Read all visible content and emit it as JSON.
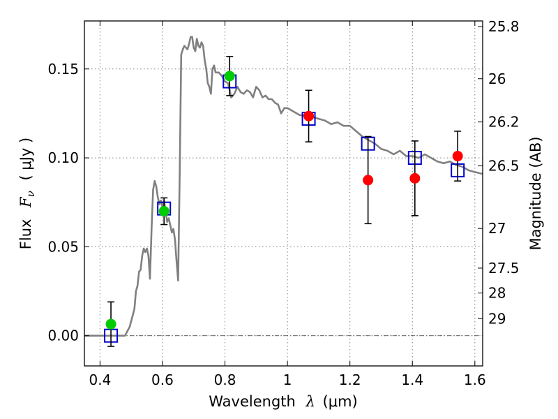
{
  "chart_data": {
    "type": "scatter",
    "xlabel_text": "Wavelength",
    "xlabel_symbol": "λ",
    "xlabel_unit": "(μm)",
    "ylabel_text": "Flux",
    "ylabel_symbol": "F",
    "ylabel_sub": "ν",
    "ylabel_unit": "( μJy )",
    "y2label": "Magnitude (AB)",
    "xlim": [
      0.35,
      1.625
    ],
    "ylim": [
      -0.017,
      0.177
    ],
    "grid": true,
    "x_ticks": [
      {
        "value": 0.4,
        "label": "0.4"
      },
      {
        "value": 0.6,
        "label": "0.6"
      },
      {
        "value": 0.8,
        "label": "0.8"
      },
      {
        "value": 1.0,
        "label": "1"
      },
      {
        "value": 1.2,
        "label": "1.2"
      },
      {
        "value": 1.4,
        "label": "1.4"
      },
      {
        "value": 1.6,
        "label": "1.6"
      }
    ],
    "y_ticks": [
      {
        "value": 0.0,
        "label": "0.00"
      },
      {
        "value": 0.05,
        "label": "0.05"
      },
      {
        "value": 0.1,
        "label": "0.10"
      },
      {
        "value": 0.15,
        "label": "0.15"
      }
    ],
    "magnitude_ticks": [
      {
        "flux": 0.1738,
        "label": "25.8"
      },
      {
        "flux": 0.1445,
        "label": "26"
      },
      {
        "flux": 0.1202,
        "label": "26.2"
      },
      {
        "flux": 0.0955,
        "label": "26.5"
      },
      {
        "flux": 0.0603,
        "label": "27"
      },
      {
        "flux": 0.038,
        "label": "27.5"
      },
      {
        "flux": 0.024,
        "label": "28"
      },
      {
        "flux": 0.0096,
        "label": "29"
      }
    ],
    "series": [
      {
        "kind": "line",
        "color": "#808080",
        "x": [
          0.35,
          0.48,
          0.495,
          0.51,
          0.515,
          0.52,
          0.525,
          0.53,
          0.535,
          0.54,
          0.545,
          0.55,
          0.555,
          0.56,
          0.565,
          0.57,
          0.575,
          0.58,
          0.585,
          0.59,
          0.595,
          0.6,
          0.605,
          0.61,
          0.615,
          0.62,
          0.625,
          0.63,
          0.635,
          0.64,
          0.645,
          0.65,
          0.655,
          0.66,
          0.665,
          0.67,
          0.675,
          0.68,
          0.685,
          0.69,
          0.695,
          0.7,
          0.705,
          0.71,
          0.715,
          0.72,
          0.725,
          0.73,
          0.735,
          0.74,
          0.745,
          0.75,
          0.755,
          0.76,
          0.765,
          0.77,
          0.78,
          0.79,
          0.8,
          0.81,
          0.82,
          0.83,
          0.84,
          0.85,
          0.86,
          0.87,
          0.88,
          0.89,
          0.9,
          0.91,
          0.92,
          0.93,
          0.94,
          0.95,
          0.96,
          0.97,
          0.98,
          0.99,
          1.0,
          1.02,
          1.04,
          1.06,
          1.08,
          1.1,
          1.12,
          1.14,
          1.16,
          1.18,
          1.2,
          1.22,
          1.24,
          1.26,
          1.28,
          1.3,
          1.32,
          1.34,
          1.36,
          1.38,
          1.4,
          1.42,
          1.44,
          1.46,
          1.48,
          1.5,
          1.52,
          1.54,
          1.56,
          1.58,
          1.6,
          1.625
        ],
        "y": [
          0.0,
          0.0,
          0.005,
          0.015,
          0.025,
          0.028,
          0.036,
          0.037,
          0.045,
          0.049,
          0.047,
          0.049,
          0.045,
          0.032,
          0.06,
          0.082,
          0.087,
          0.084,
          0.078,
          0.074,
          0.076,
          0.072,
          0.076,
          0.07,
          0.064,
          0.066,
          0.062,
          0.058,
          0.06,
          0.054,
          0.042,
          0.031,
          0.09,
          0.158,
          0.161,
          0.163,
          0.162,
          0.161,
          0.164,
          0.168,
          0.168,
          0.162,
          0.16,
          0.167,
          0.163,
          0.162,
          0.165,
          0.163,
          0.155,
          0.15,
          0.142,
          0.14,
          0.136,
          0.15,
          0.152,
          0.148,
          0.148,
          0.146,
          0.143,
          0.142,
          0.134,
          0.136,
          0.14,
          0.137,
          0.136,
          0.138,
          0.137,
          0.134,
          0.14,
          0.138,
          0.134,
          0.135,
          0.133,
          0.133,
          0.131,
          0.13,
          0.125,
          0.128,
          0.128,
          0.126,
          0.124,
          0.124,
          0.123,
          0.122,
          0.121,
          0.119,
          0.12,
          0.118,
          0.118,
          0.115,
          0.112,
          0.11,
          0.108,
          0.105,
          0.104,
          0.102,
          0.104,
          0.101,
          0.101,
          0.1,
          0.102,
          0.1,
          0.098,
          0.097,
          0.098,
          0.096,
          0.095,
          0.093,
          0.092,
          0.091
        ]
      },
      {
        "kind": "model-points",
        "marker": "open-square",
        "color": "#0000cc",
        "x": [
          0.435,
          0.605,
          0.815,
          1.068,
          1.258,
          1.408,
          1.545
        ],
        "y": [
          0.0,
          0.0715,
          0.143,
          0.122,
          0.108,
          0.1,
          0.093
        ]
      },
      {
        "kind": "observed",
        "marker": "filled-circle",
        "color": "#00cc00",
        "x": [
          0.435,
          0.605,
          0.815
        ],
        "y": [
          0.0065,
          0.07,
          0.146
        ],
        "yerr": [
          0.0125,
          0.0075,
          0.011
        ]
      },
      {
        "kind": "observed",
        "marker": "filled-circle",
        "color": "#ff0000",
        "x": [
          1.068,
          1.258,
          1.408,
          1.545
        ],
        "y": [
          0.1235,
          0.0875,
          0.0885,
          0.101
        ],
        "yerr": [
          0.0145,
          0.0245,
          0.021,
          0.014
        ]
      }
    ]
  }
}
